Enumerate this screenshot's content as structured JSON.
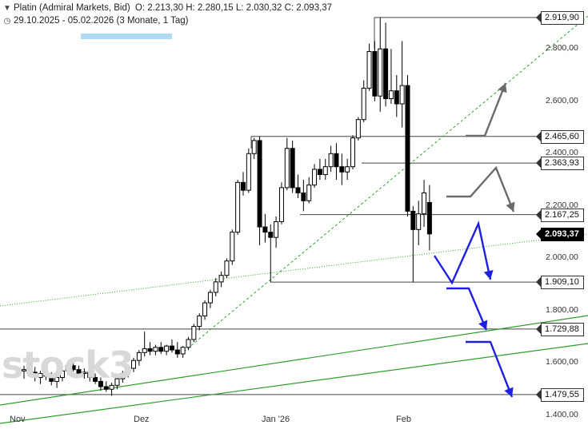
{
  "header": {
    "instrument": "Platin (Admiral Markets, Bid)",
    "ohlc_text": "O: 2.213,30  H: 2.280,15  L: 2.030,32  C: 2.093,37",
    "range": "29.10.2025 - 05.02.2026 (3 Monate, 1 Tag)",
    "clock_icon": "clock-icon",
    "menu_icon": "chevron-down-icon"
  },
  "watermark": "stock3",
  "colors": {
    "candle": "#000000",
    "level": "#444444",
    "trend": "#2e9e2e",
    "scenario_gray": "#6b6b6b",
    "scenario_blue": "#1f1fe0",
    "price_tag": "#000000",
    "highlight": "#aedcf5"
  },
  "chart_data": {
    "type": "candlestick",
    "title": "Platin (Admiral Markets, Bid)",
    "xlabel": "",
    "ylabel": "",
    "ylim": [
      1390,
      2960
    ],
    "x_ticks": [
      "Nov",
      "Dez",
      "Jan '26",
      "Feb"
    ],
    "y_ticks": [
      "1.400,00",
      "1.600,00",
      "1.800,00",
      "2.000,00",
      "2.200,00",
      "2.400,00",
      "2.600,00",
      "2.800,00"
    ],
    "y_tick_values": [
      1400,
      1600,
      1800,
      2000,
      2200,
      2400,
      2600,
      2800
    ],
    "grid": false,
    "ohlc": [
      [
        1570,
        1590,
        1540,
        1575
      ],
      [
        1575,
        1600,
        1555,
        1565
      ],
      [
        1565,
        1585,
        1530,
        1545
      ],
      [
        1545,
        1570,
        1520,
        1560
      ],
      [
        1560,
        1580,
        1535,
        1550
      ],
      [
        1550,
        1565,
        1515,
        1530
      ],
      [
        1530,
        1555,
        1505,
        1545
      ],
      [
        1545,
        1575,
        1530,
        1570
      ],
      [
        1570,
        1600,
        1555,
        1590
      ],
      [
        1590,
        1610,
        1560,
        1575
      ],
      [
        1575,
        1590,
        1545,
        1560
      ],
      [
        1560,
        1580,
        1540,
        1565
      ],
      [
        1565,
        1575,
        1530,
        1545
      ],
      [
        1545,
        1560,
        1520,
        1530
      ],
      [
        1530,
        1545,
        1495,
        1510
      ],
      [
        1510,
        1530,
        1490,
        1500
      ],
      [
        1500,
        1525,
        1475,
        1515
      ],
      [
        1515,
        1545,
        1500,
        1540
      ],
      [
        1540,
        1570,
        1525,
        1560
      ],
      [
        1560,
        1590,
        1545,
        1580
      ],
      [
        1580,
        1620,
        1565,
        1610
      ],
      [
        1610,
        1650,
        1590,
        1640
      ],
      [
        1640,
        1720,
        1625,
        1655
      ],
      [
        1655,
        1680,
        1630,
        1645
      ],
      [
        1645,
        1670,
        1630,
        1660
      ],
      [
        1660,
        1680,
        1635,
        1645
      ],
      [
        1645,
        1670,
        1630,
        1665
      ],
      [
        1665,
        1690,
        1640,
        1650
      ],
      [
        1650,
        1680,
        1620,
        1635
      ],
      [
        1635,
        1665,
        1620,
        1660
      ],
      [
        1660,
        1700,
        1650,
        1690
      ],
      [
        1690,
        1750,
        1680,
        1740
      ],
      [
        1740,
        1790,
        1725,
        1780
      ],
      [
        1780,
        1840,
        1765,
        1830
      ],
      [
        1830,
        1880,
        1810,
        1870
      ],
      [
        1870,
        1925,
        1855,
        1910
      ],
      [
        1910,
        1950,
        1890,
        1935
      ],
      [
        1935,
        2000,
        1925,
        1990
      ],
      [
        1990,
        2110,
        1975,
        2100
      ],
      [
        2100,
        2300,
        2090,
        2290
      ],
      [
        2290,
        2330,
        2240,
        2260
      ],
      [
        2260,
        2420,
        2250,
        2400
      ],
      [
        2400,
        2460,
        2380,
        2450
      ],
      [
        2450,
        2465,
        2050,
        2120
      ],
      [
        2120,
        2170,
        2060,
        2100
      ],
      [
        2100,
        2130,
        1909,
        2080
      ],
      [
        2080,
        2160,
        2040,
        2140
      ],
      [
        2140,
        2290,
        2130,
        2270
      ],
      [
        2270,
        2460,
        2260,
        2420
      ],
      [
        2420,
        2450,
        2250,
        2270
      ],
      [
        2270,
        2320,
        2230,
        2250
      ],
      [
        2250,
        2300,
        2180,
        2220
      ],
      [
        2220,
        2310,
        2210,
        2280
      ],
      [
        2280,
        2360,
        2270,
        2340
      ],
      [
        2340,
        2380,
        2300,
        2320
      ],
      [
        2320,
        2380,
        2300,
        2350
      ],
      [
        2350,
        2430,
        2330,
        2400
      ],
      [
        2400,
        2440,
        2300,
        2350
      ],
      [
        2350,
        2400,
        2280,
        2330
      ],
      [
        2330,
        2380,
        2300,
        2350
      ],
      [
        2350,
        2470,
        2340,
        2460
      ],
      [
        2460,
        2540,
        2450,
        2530
      ],
      [
        2530,
        2680,
        2520,
        2650
      ],
      [
        2650,
        2820,
        2640,
        2790
      ],
      [
        2790,
        2830,
        2600,
        2620
      ],
      [
        2620,
        2919.9,
        2560,
        2800
      ],
      [
        2800,
        2900,
        2580,
        2610
      ],
      [
        2610,
        2800,
        2590,
        2640
      ],
      [
        2640,
        2700,
        2540,
        2590
      ],
      [
        2590,
        2830,
        2500,
        2660
      ],
      [
        2660,
        2700,
        2160,
        2180
      ],
      [
        2180,
        2200,
        1909,
        2110
      ],
      [
        2110,
        2220,
        2050,
        2170
      ],
      [
        2170,
        2300,
        2120,
        2250
      ],
      [
        2213.3,
        2280.15,
        2030.32,
        2093.37
      ]
    ],
    "levels": [
      {
        "value": 2919.9,
        "label": "2.919,90"
      },
      {
        "value": 2465.6,
        "label": "2.465,60"
      },
      {
        "value": 2363.93,
        "label": "2.363,93"
      },
      {
        "value": 2167.25,
        "label": "2.167,25"
      },
      {
        "value": 1909.1,
        "label": "1.909,10"
      },
      {
        "value": 1729.88,
        "label": "1.729,88"
      },
      {
        "value": 1479.55,
        "label": "1.479,55"
      }
    ],
    "last_price": {
      "value": 2093.37,
      "label": "2.093,37"
    }
  }
}
